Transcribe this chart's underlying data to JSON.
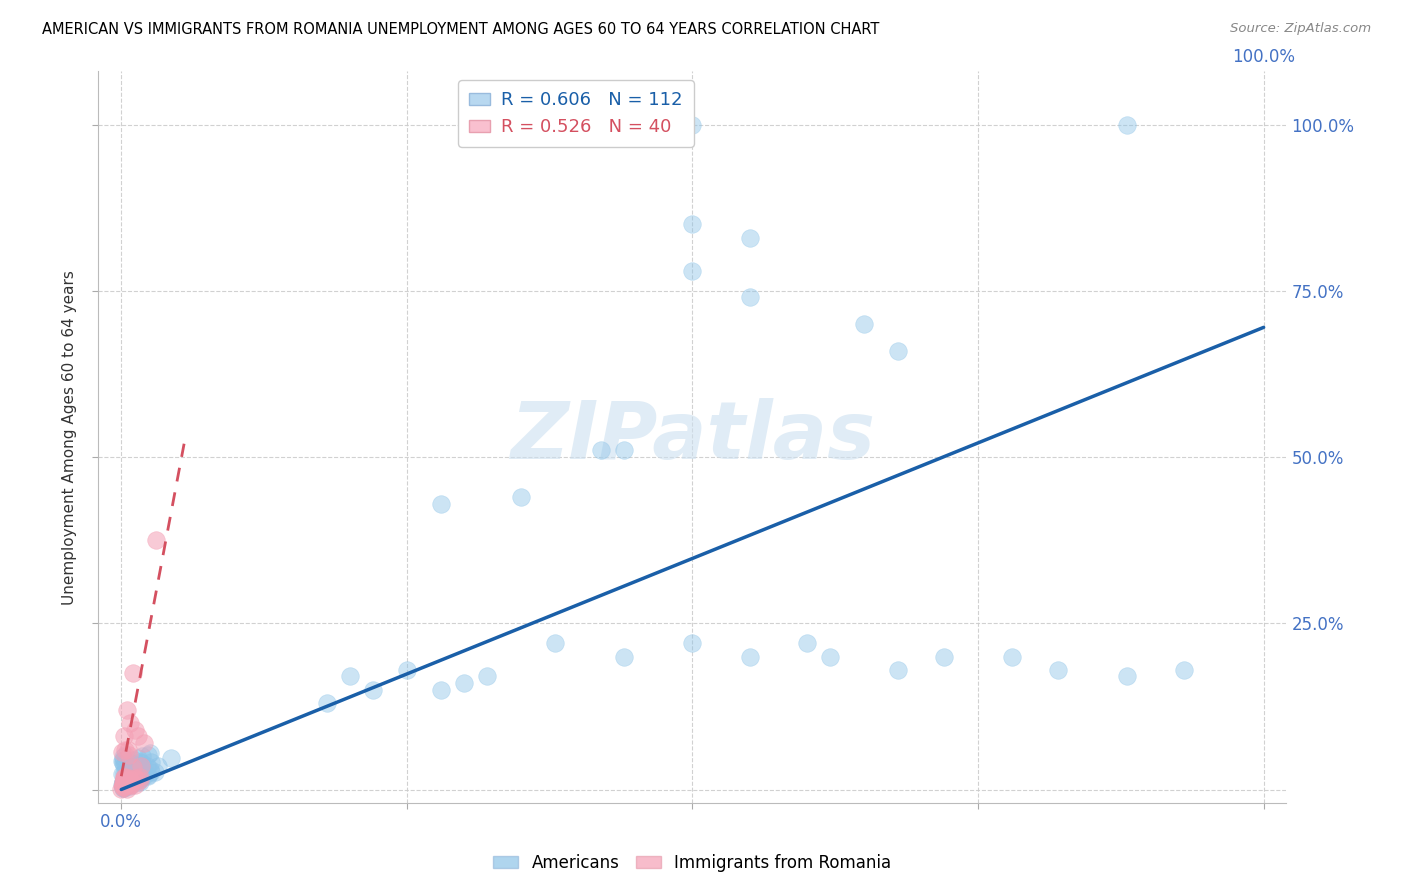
{
  "title": "AMERICAN VS IMMIGRANTS FROM ROMANIA UNEMPLOYMENT AMONG AGES 60 TO 64 YEARS CORRELATION CHART",
  "source": "Source: ZipAtlas.com",
  "ylabel": "Unemployment Among Ages 60 to 64 years",
  "xlim": [
    -0.02,
    1.02
  ],
  "ylim": [
    -0.02,
    1.08
  ],
  "xticks": [
    0.0,
    0.25,
    0.5,
    0.75,
    1.0
  ],
  "yticks": [
    0.0,
    0.25,
    0.5,
    0.75,
    1.0
  ],
  "xticklabels": [
    "0.0%",
    "",
    "",
    "",
    "100.0%"
  ],
  "yticklabels": [
    "",
    "25.0%",
    "50.0%",
    "75.0%",
    "100.0%"
  ],
  "right_yticklabels": [
    "",
    "25.0%",
    "50.0%",
    "75.0%",
    "100.0%"
  ],
  "american_color": "#8ec4e8",
  "romanian_color": "#f4a0b5",
  "trend_american_color": "#1a5fa8",
  "trend_romanian_color": "#d45060",
  "R_american": 0.606,
  "N_american": 112,
  "R_romanian": 0.526,
  "N_romanian": 40,
  "watermark": "ZIPatlas",
  "background_color": "#ffffff",
  "grid_color": "#cccccc",
  "trend_am_x0": 0.0,
  "trend_am_x1": 1.0,
  "trend_am_y0": 0.0,
  "trend_am_y1": 0.695,
  "trend_ro_x0": 0.0,
  "trend_ro_x1": 0.055,
  "trend_ro_y0": 0.02,
  "trend_ro_y1": 0.52
}
